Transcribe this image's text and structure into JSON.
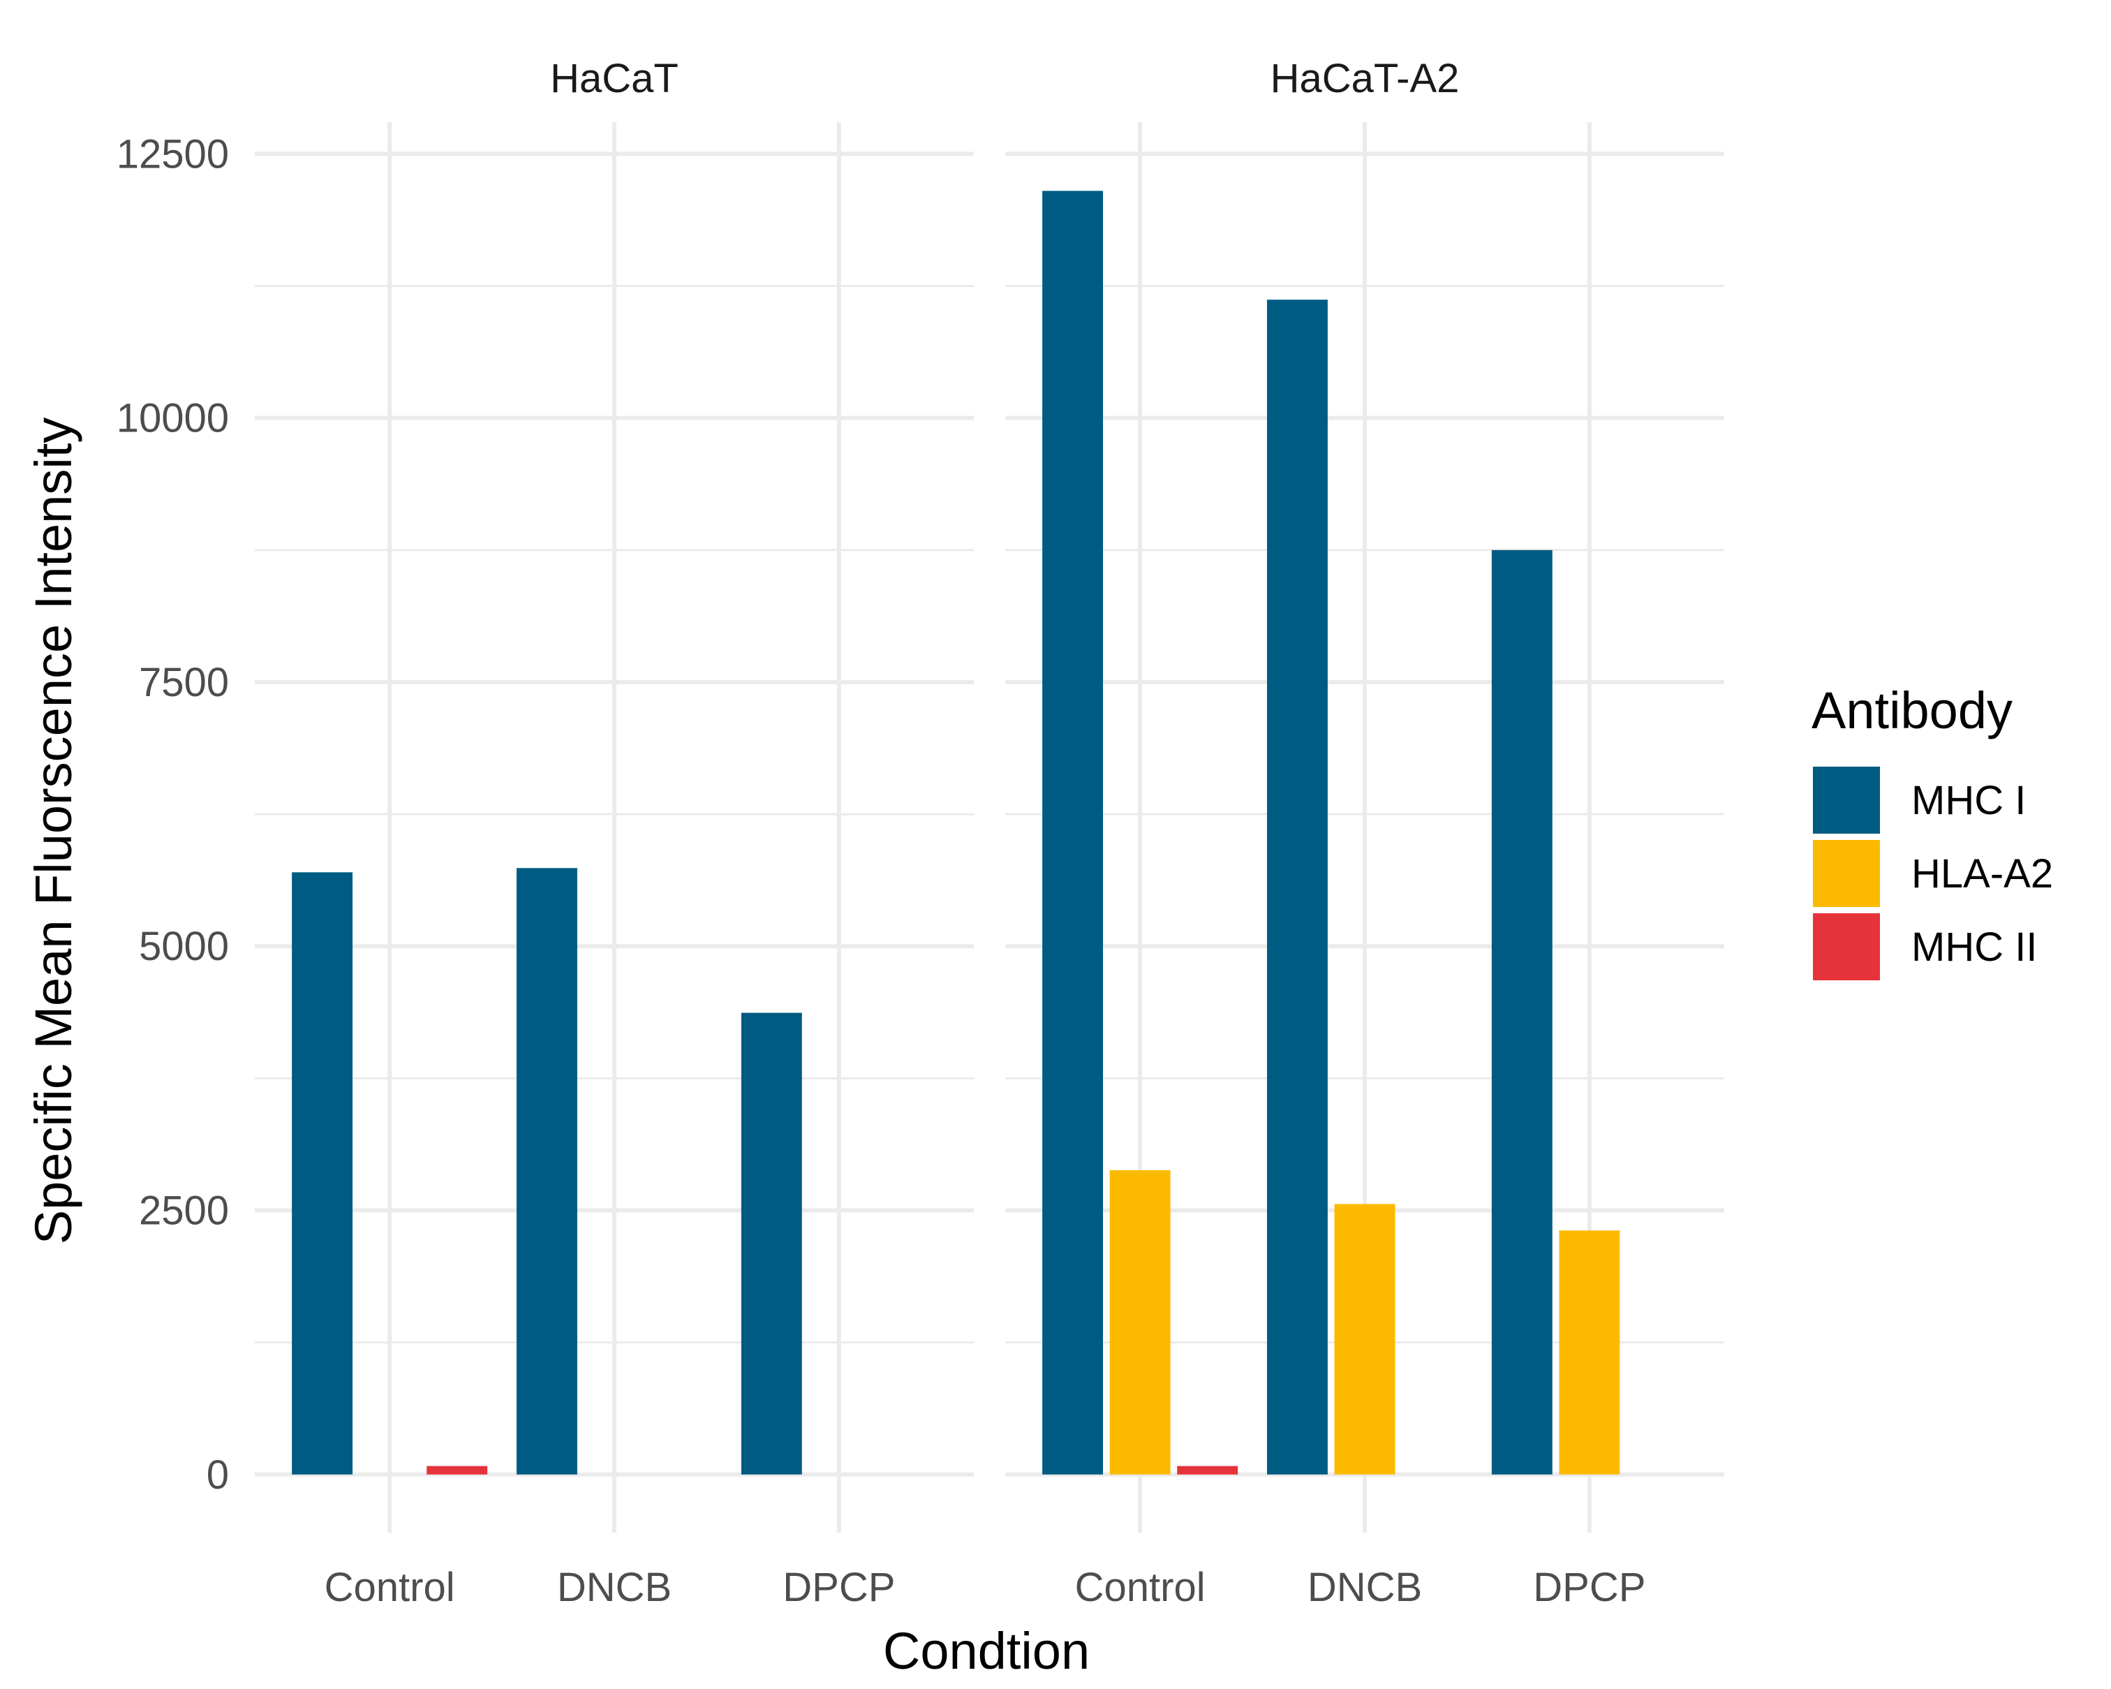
{
  "chart_data": {
    "type": "bar",
    "facets": [
      "HaCaT",
      "HaCaT-A2"
    ],
    "categories": [
      "Control",
      "DNCB",
      "DPCP"
    ],
    "series": [
      {
        "name": "MHC I",
        "color": "#005B82",
        "values": {
          "HaCaT": [
            5700,
            5740,
            4370
          ],
          "HaCaT-A2": [
            12150,
            11120,
            8750
          ]
        }
      },
      {
        "name": "HLA-A2",
        "color": "#FBBA00",
        "values": {
          "HaCaT": [
            0,
            0,
            0
          ],
          "HaCaT-A2": [
            2880,
            2560,
            2310
          ]
        }
      },
      {
        "name": "MHC II",
        "color": "#E6323A",
        "values": {
          "HaCaT": [
            80,
            0,
            0
          ],
          "HaCaT-A2": [
            80,
            0,
            0
          ]
        }
      }
    ],
    "xlabel": "Condtion",
    "ylabel": "Specific Mean Fluorscence Intensity",
    "ylim": [
      -550,
      12800
    ],
    "yticks": [
      0,
      2500,
      5000,
      7500,
      10000,
      12500
    ],
    "grid": true,
    "legend": {
      "title": "Antibody",
      "position": "right"
    }
  }
}
